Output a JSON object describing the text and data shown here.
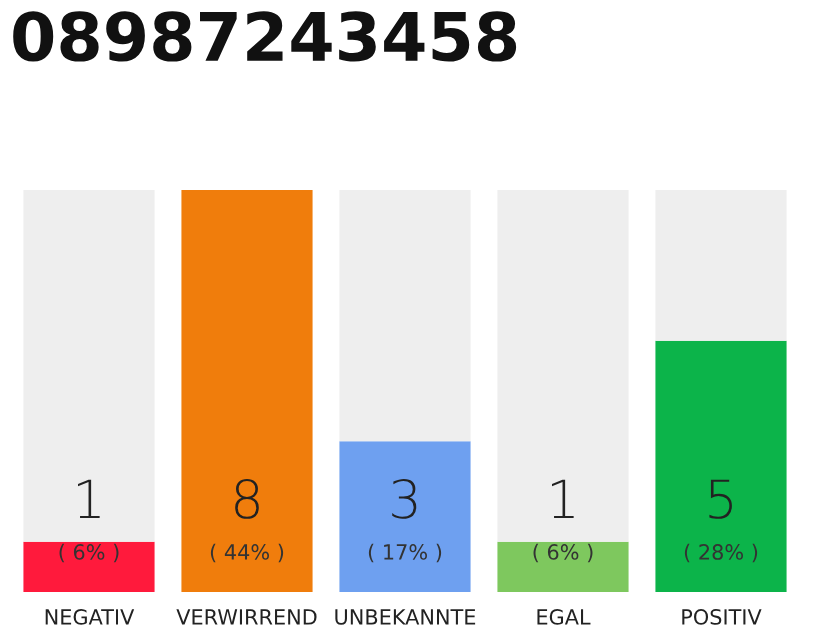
{
  "chart_data": {
    "type": "bar",
    "title": "08987243458",
    "categories": [
      "NEGATIV",
      "VERWIRREND",
      "UNBEKANNTE",
      "EGAL",
      "POSITIV"
    ],
    "stacked": true,
    "series": [
      {
        "colors": [
          "#ff1a3c",
          "#f07d0c",
          "#6ea0f0",
          "#7ec85e",
          "#0cb44a"
        ],
        "values": [
          1,
          8,
          3,
          1,
          5
        ],
        "value_labels": [
          "1",
          "8",
          "3",
          "1",
          "5"
        ]
      },
      {
        "color": "#eeeeee",
        "values": [
          7,
          0,
          5,
          7,
          3
        ]
      }
    ],
    "ylim": [
      0,
      8
    ],
    "tick_labels": "x",
    "grid": false,
    "legend": false,
    "annotations": [
      "( 6% )",
      "( 44% )",
      "( 17% )",
      "( 6% )",
      "( 28% )"
    ]
  }
}
